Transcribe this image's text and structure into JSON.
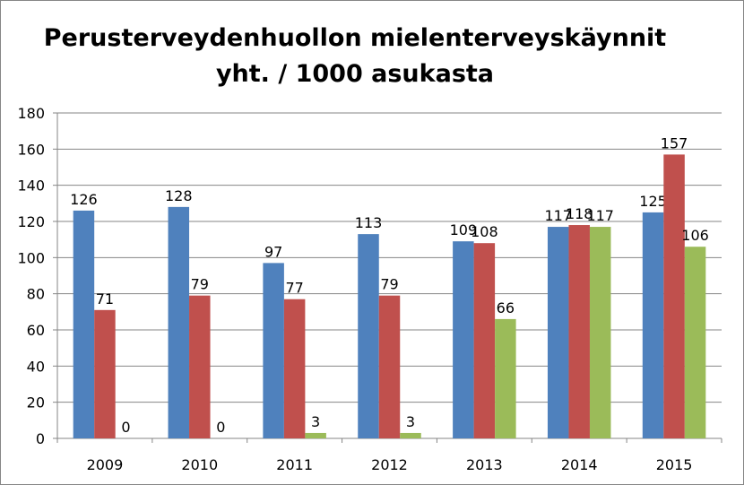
{
  "chart_data": {
    "type": "bar",
    "title_lines": [
      "Perusterveydenhuollon mielenterveyskäynnit",
      "yht. / 1000 asukasta"
    ],
    "xlabel": "",
    "ylabel": "",
    "categories": [
      "2009",
      "2010",
      "2011",
      "2012",
      "2013",
      "2014",
      "2015"
    ],
    "series": [
      {
        "values": [
          126,
          128,
          97,
          113,
          109,
          117,
          125
        ],
        "color": "#4F81BD"
      },
      {
        "values": [
          71,
          79,
          77,
          79,
          108,
          118,
          157
        ],
        "color": "#C0504D"
      },
      {
        "values": [
          0,
          0,
          3,
          3,
          66,
          117,
          106
        ],
        "color": "#9BBB59"
      }
    ],
    "ylim": [
      0,
      180
    ],
    "yticks": [
      0,
      20,
      40,
      60,
      80,
      100,
      120,
      140,
      160,
      180
    ],
    "grid": true,
    "legend": "none"
  }
}
